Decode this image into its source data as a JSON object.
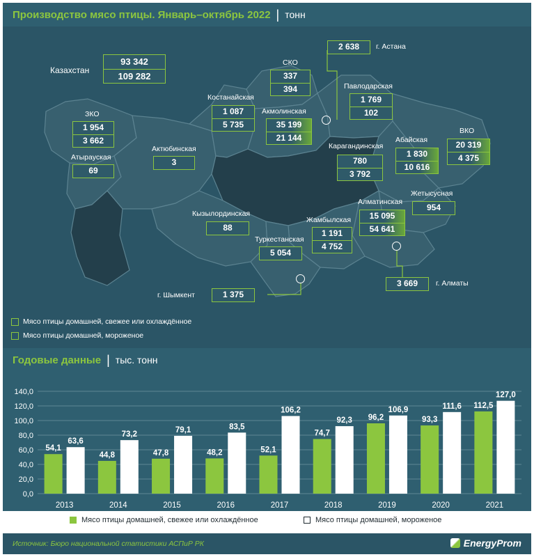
{
  "header1": {
    "title": "Производство мясо птицы. Январь–октябрь 2022",
    "separator": "|",
    "unit": "тонн"
  },
  "map": {
    "kazakhstan": {
      "label": "Казахстан",
      "fresh": "93 342",
      "frozen": "109 282"
    },
    "regions": [
      {
        "name": "ЗКО",
        "fresh": "1 954",
        "frozen": "3 662"
      },
      {
        "name": "Атырауская",
        "fresh": "69"
      },
      {
        "name": "Актюбинская",
        "fresh": "3"
      },
      {
        "name": "Костанайская",
        "fresh": "1 087",
        "frozen": "5 735"
      },
      {
        "name": "СКО",
        "fresh": "337",
        "frozen": "394"
      },
      {
        "name": "Акмолинская",
        "fresh": "35 199",
        "frozen": "21 144"
      },
      {
        "name": "Павлодарская",
        "fresh": "1 769",
        "frozen": "102"
      },
      {
        "name": "Карагандинская",
        "fresh": "780",
        "frozen": "3 792"
      },
      {
        "name": "Абайская",
        "fresh": "1 830",
        "frozen": "10 616"
      },
      {
        "name": "ВКО",
        "fresh": "20 319",
        "frozen": "4 375"
      },
      {
        "name": "Жетысусная",
        "fresh": "954"
      },
      {
        "name": "Алматинская",
        "fresh": "15 095",
        "frozen": "54 641"
      },
      {
        "name": "Жамбылская",
        "fresh": "1 191",
        "frozen": "4 752"
      },
      {
        "name": "Кызылординская",
        "fresh": "88"
      },
      {
        "name": "Туркестанская",
        "fresh": "5 054"
      }
    ],
    "cities": [
      {
        "name": "г. Астана",
        "value": "2 638"
      },
      {
        "name": "г. Алматы",
        "value": "3 669"
      },
      {
        "name": "г. Шымкент",
        "value": "1 375"
      }
    ],
    "legend": [
      "Мясо птицы домашней, свежее или охлаждённое",
      "Мясо птицы домашней, мороженое"
    ]
  },
  "header2": {
    "title": "Годовые данные",
    "separator": "|",
    "unit": "тыс. тонн"
  },
  "chart_data": {
    "type": "bar",
    "categories": [
      "2013",
      "2014",
      "2015",
      "2016",
      "2017",
      "2018",
      "2019",
      "2020",
      "2021"
    ],
    "series": [
      {
        "name": "Мясо птицы домашней, свежее или охлаждённое",
        "color": "#8cc63f",
        "values": [
          54.1,
          44.8,
          47.8,
          48.2,
          52.1,
          74.7,
          96.2,
          93.3,
          112.5
        ],
        "labels": [
          "54,1",
          "44,8",
          "47,8",
          "48,2",
          "52,1",
          "74,7",
          "96,2",
          "93,3",
          "112,5"
        ]
      },
      {
        "name": "Мясо птицы домашней, мороженое",
        "color": "#ffffff",
        "values": [
          63.6,
          73.2,
          79.1,
          83.5,
          106.2,
          92.3,
          106.9,
          111.6,
          127.0
        ],
        "labels": [
          "63,6",
          "73,2",
          "79,1",
          "83,5",
          "106,2",
          "92,3",
          "106,9",
          "111,6",
          "127,0"
        ]
      }
    ],
    "ylim": [
      0,
      140
    ],
    "yticks": [
      "0,0",
      "20,0",
      "40,0",
      "60,0",
      "80,0",
      "100,0",
      "120,0",
      "140,0"
    ],
    "grid": true,
    "legend": "bottom"
  },
  "footer": {
    "source": "Источник: Бюро национальной статистики АСПиР РК",
    "brand": "EnergyProm"
  }
}
